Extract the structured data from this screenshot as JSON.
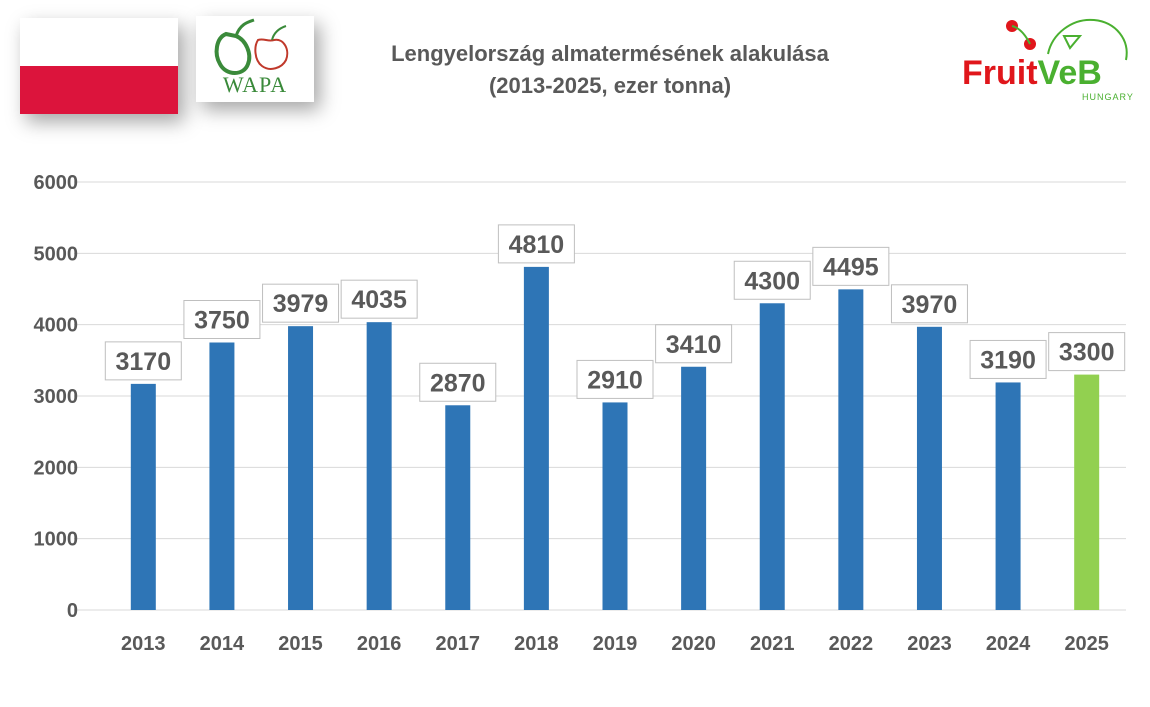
{
  "header": {
    "title_line1": "Lengyelország almatermésének alakulása",
    "title_line2": "(2013-2025, ezer tonna)",
    "wapa_logo_text": "WAPA",
    "fruitveb_logo_text": "FruitVeB",
    "fruitveb_logo_sub": "HUNGARY"
  },
  "colors": {
    "bar_default": "#2e75b6",
    "bar_highlight": "#92d050",
    "text": "#595959",
    "gridline": "#d9d9d9",
    "flag_red": "#dc143c",
    "wapa_green": "#3a8a3a",
    "fruitveb_red": "#e0161b",
    "fruitveb_green": "#4ab030"
  },
  "icons": {
    "flag": "poland-flag-icon",
    "wapa": "wapa-logo-icon",
    "fruitveb": "fruitveb-logo-icon"
  },
  "chart_data": {
    "type": "bar",
    "title": "Lengyelország almatermésének alakulása (2013-2025, ezer tonna)",
    "categories": [
      "2013",
      "2014",
      "2015",
      "2016",
      "2017",
      "2018",
      "2019",
      "2020",
      "2021",
      "2022",
      "2023",
      "2024",
      "2025"
    ],
    "values": [
      3170,
      3750,
      3979,
      4035,
      2870,
      4810,
      2910,
      3410,
      4300,
      4495,
      3970,
      3190,
      3300
    ],
    "highlight_index": 12,
    "ylim": [
      0,
      6000
    ],
    "yticks": [
      0,
      1000,
      2000,
      3000,
      4000,
      5000,
      6000
    ],
    "grid": true,
    "legend": "none",
    "xlabel": "",
    "ylabel": ""
  }
}
